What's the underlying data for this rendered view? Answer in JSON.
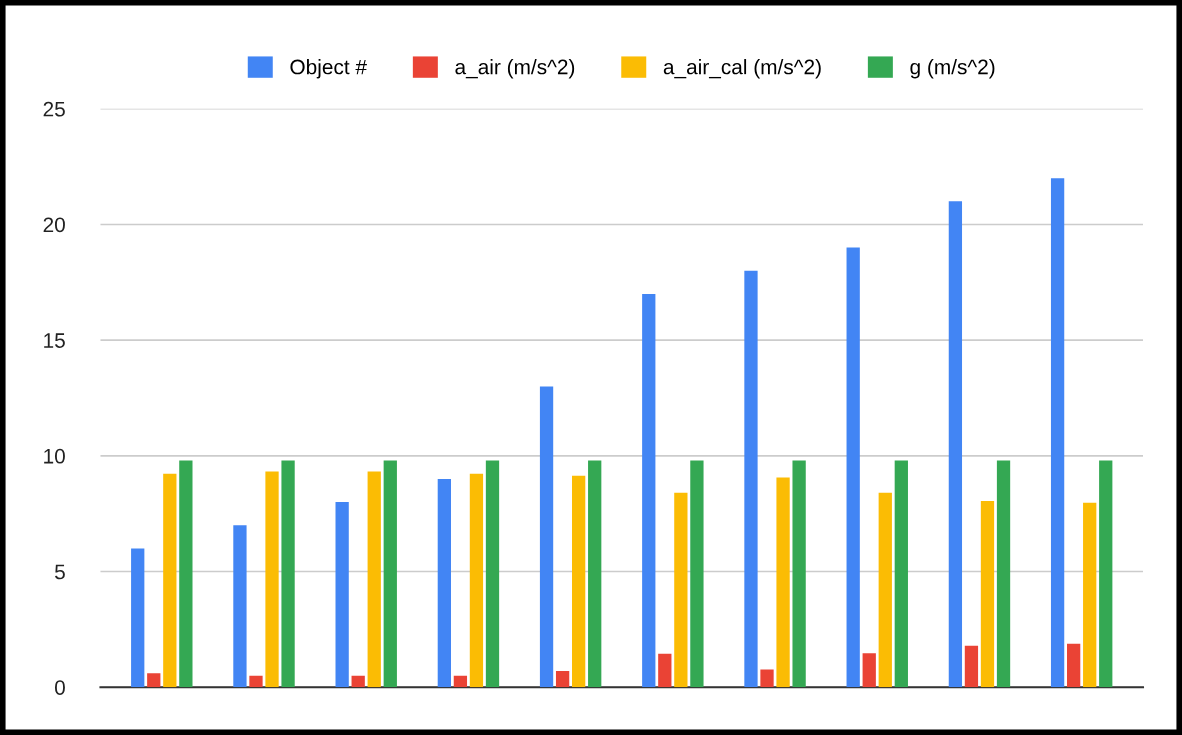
{
  "chart_data": {
    "type": "bar",
    "categories": [
      null,
      null,
      null,
      null,
      null,
      null,
      null,
      null,
      null,
      null
    ],
    "series": [
      {
        "name": "Object #",
        "color": "#4285f4",
        "values": [
          6,
          7,
          8,
          9,
          13,
          17,
          18,
          19,
          21,
          22
        ]
      },
      {
        "name": "a_air (m/s^2)",
        "color": "#ea4335",
        "values": [
          0.6,
          0.5,
          0.5,
          0.5,
          0.7,
          1.45,
          0.77,
          1.47,
          1.79,
          1.88
        ]
      },
      {
        "name": "a_air_cal (m/s^2)",
        "color": "#fbbc04",
        "values": [
          9.23,
          9.32,
          9.32,
          9.23,
          9.14,
          8.4,
          9.06,
          8.4,
          8.05,
          7.97
        ]
      },
      {
        "name": "g (m/s^2)",
        "color": "#34a853",
        "values": [
          9.8,
          9.8,
          9.8,
          9.8,
          9.8,
          9.8,
          9.8,
          9.8,
          9.8,
          9.8
        ]
      }
    ],
    "ylim": [
      0,
      25
    ],
    "yticks": [
      0,
      5,
      10,
      15,
      20,
      25
    ],
    "grid": "y",
    "legend": "top"
  }
}
